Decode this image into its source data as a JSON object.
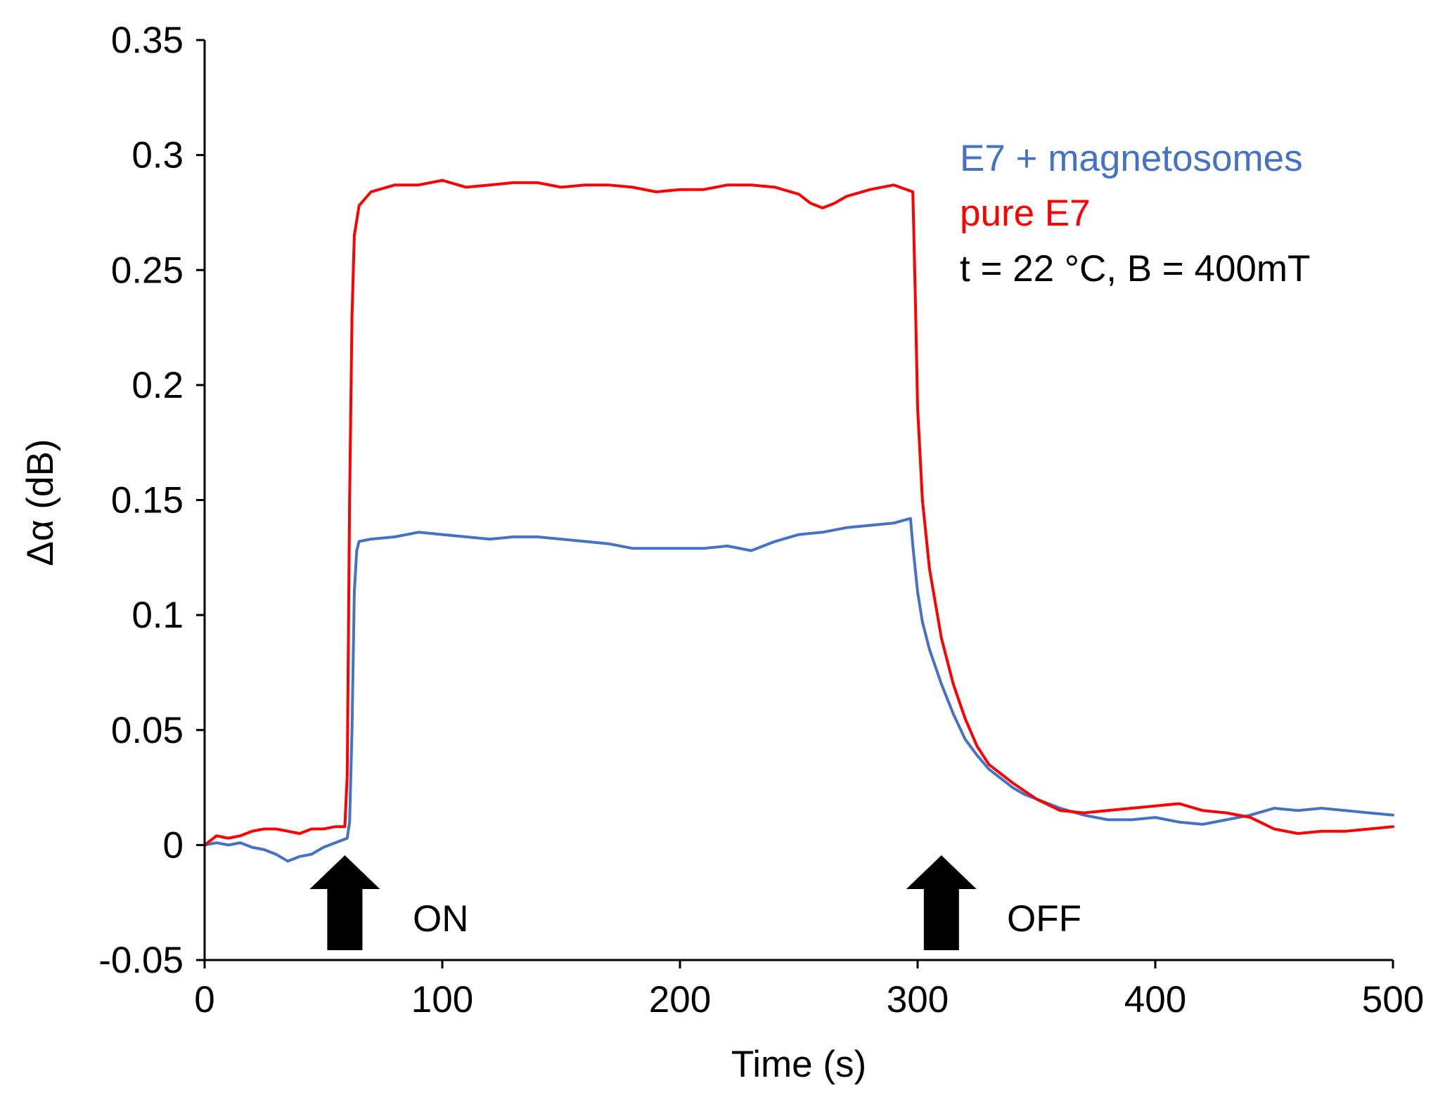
{
  "chart_data": {
    "type": "line",
    "xlabel": "Time (s)",
    "ylabel": "Δα (dB)",
    "xlim": [
      0,
      500
    ],
    "ylim": [
      -0.05,
      0.35
    ],
    "x_ticks": [
      "0",
      "100",
      "200",
      "300",
      "400",
      "500"
    ],
    "y_ticks": [
      "-0.05",
      "0",
      "0.05",
      "0.1",
      "0.15",
      "0.2",
      "0.25",
      "0.3",
      "0.35"
    ],
    "grid": false,
    "legend_position": "top-right",
    "series": [
      {
        "name": "E7 + magnetosomes",
        "color": "#4472C4",
        "points": [
          [
            0,
            0.0
          ],
          [
            5,
            0.001
          ],
          [
            10,
            0.0
          ],
          [
            15,
            0.001
          ],
          [
            20,
            -0.001
          ],
          [
            25,
            -0.002
          ],
          [
            30,
            -0.004
          ],
          [
            35,
            -0.007
          ],
          [
            40,
            -0.005
          ],
          [
            45,
            -0.004
          ],
          [
            50,
            -0.001
          ],
          [
            55,
            0.001
          ],
          [
            60,
            0.003
          ],
          [
            61,
            0.01
          ],
          [
            62,
            0.05
          ],
          [
            63,
            0.11
          ],
          [
            64,
            0.128
          ],
          [
            65,
            0.132
          ],
          [
            70,
            0.133
          ],
          [
            80,
            0.134
          ],
          [
            90,
            0.136
          ],
          [
            100,
            0.135
          ],
          [
            110,
            0.134
          ],
          [
            120,
            0.133
          ],
          [
            130,
            0.134
          ],
          [
            140,
            0.134
          ],
          [
            150,
            0.133
          ],
          [
            160,
            0.132
          ],
          [
            170,
            0.131
          ],
          [
            180,
            0.129
          ],
          [
            190,
            0.129
          ],
          [
            200,
            0.129
          ],
          [
            210,
            0.129
          ],
          [
            220,
            0.13
          ],
          [
            230,
            0.128
          ],
          [
            240,
            0.132
          ],
          [
            250,
            0.135
          ],
          [
            260,
            0.136
          ],
          [
            270,
            0.138
          ],
          [
            280,
            0.139
          ],
          [
            290,
            0.14
          ],
          [
            297,
            0.142
          ],
          [
            298,
            0.13
          ],
          [
            300,
            0.11
          ],
          [
            302,
            0.097
          ],
          [
            305,
            0.085
          ],
          [
            310,
            0.07
          ],
          [
            315,
            0.057
          ],
          [
            320,
            0.046
          ],
          [
            325,
            0.039
          ],
          [
            330,
            0.033
          ],
          [
            335,
            0.029
          ],
          [
            340,
            0.025
          ],
          [
            345,
            0.022
          ],
          [
            350,
            0.02
          ],
          [
            360,
            0.016
          ],
          [
            370,
            0.013
          ],
          [
            380,
            0.011
          ],
          [
            390,
            0.011
          ],
          [
            400,
            0.012
          ],
          [
            410,
            0.01
          ],
          [
            420,
            0.009
          ],
          [
            430,
            0.011
          ],
          [
            440,
            0.013
          ],
          [
            450,
            0.016
          ],
          [
            460,
            0.015
          ],
          [
            470,
            0.016
          ],
          [
            480,
            0.015
          ],
          [
            490,
            0.014
          ],
          [
            500,
            0.013
          ]
        ]
      },
      {
        "name": "pure E7",
        "color": "#FF0000",
        "points": [
          [
            0,
            0.0
          ],
          [
            5,
            0.004
          ],
          [
            10,
            0.003
          ],
          [
            15,
            0.004
          ],
          [
            20,
            0.006
          ],
          [
            25,
            0.007
          ],
          [
            30,
            0.007
          ],
          [
            35,
            0.006
          ],
          [
            40,
            0.005
          ],
          [
            45,
            0.007
          ],
          [
            50,
            0.007
          ],
          [
            55,
            0.008
          ],
          [
            59,
            0.008
          ],
          [
            60,
            0.03
          ],
          [
            61,
            0.15
          ],
          [
            62,
            0.23
          ],
          [
            63,
            0.265
          ],
          [
            65,
            0.278
          ],
          [
            70,
            0.284
          ],
          [
            80,
            0.287
          ],
          [
            90,
            0.287
          ],
          [
            100,
            0.289
          ],
          [
            110,
            0.286
          ],
          [
            120,
            0.287
          ],
          [
            130,
            0.288
          ],
          [
            140,
            0.288
          ],
          [
            150,
            0.286
          ],
          [
            160,
            0.287
          ],
          [
            170,
            0.287
          ],
          [
            180,
            0.286
          ],
          [
            190,
            0.284
          ],
          [
            200,
            0.285
          ],
          [
            210,
            0.285
          ],
          [
            220,
            0.287
          ],
          [
            230,
            0.287
          ],
          [
            240,
            0.286
          ],
          [
            250,
            0.283
          ],
          [
            255,
            0.279
          ],
          [
            260,
            0.277
          ],
          [
            265,
            0.279
          ],
          [
            270,
            0.282
          ],
          [
            280,
            0.285
          ],
          [
            290,
            0.287
          ],
          [
            298,
            0.284
          ],
          [
            299,
            0.24
          ],
          [
            300,
            0.19
          ],
          [
            302,
            0.15
          ],
          [
            305,
            0.12
          ],
          [
            310,
            0.09
          ],
          [
            315,
            0.07
          ],
          [
            320,
            0.055
          ],
          [
            325,
            0.043
          ],
          [
            330,
            0.035
          ],
          [
            340,
            0.027
          ],
          [
            350,
            0.02
          ],
          [
            360,
            0.015
          ],
          [
            370,
            0.014
          ],
          [
            380,
            0.015
          ],
          [
            390,
            0.016
          ],
          [
            400,
            0.017
          ],
          [
            410,
            0.018
          ],
          [
            420,
            0.015
          ],
          [
            430,
            0.014
          ],
          [
            440,
            0.012
          ],
          [
            450,
            0.007
          ],
          [
            460,
            0.005
          ],
          [
            470,
            0.006
          ],
          [
            480,
            0.006
          ],
          [
            490,
            0.007
          ],
          [
            500,
            0.008
          ]
        ]
      }
    ],
    "annotations": [
      {
        "text": "t = 22 °C, B = 400mT",
        "color": "#000000"
      },
      {
        "text": "ON",
        "x": 70,
        "arrow_x": 59
      },
      {
        "text": "OFF",
        "x": 315,
        "arrow_x": 310
      }
    ]
  }
}
